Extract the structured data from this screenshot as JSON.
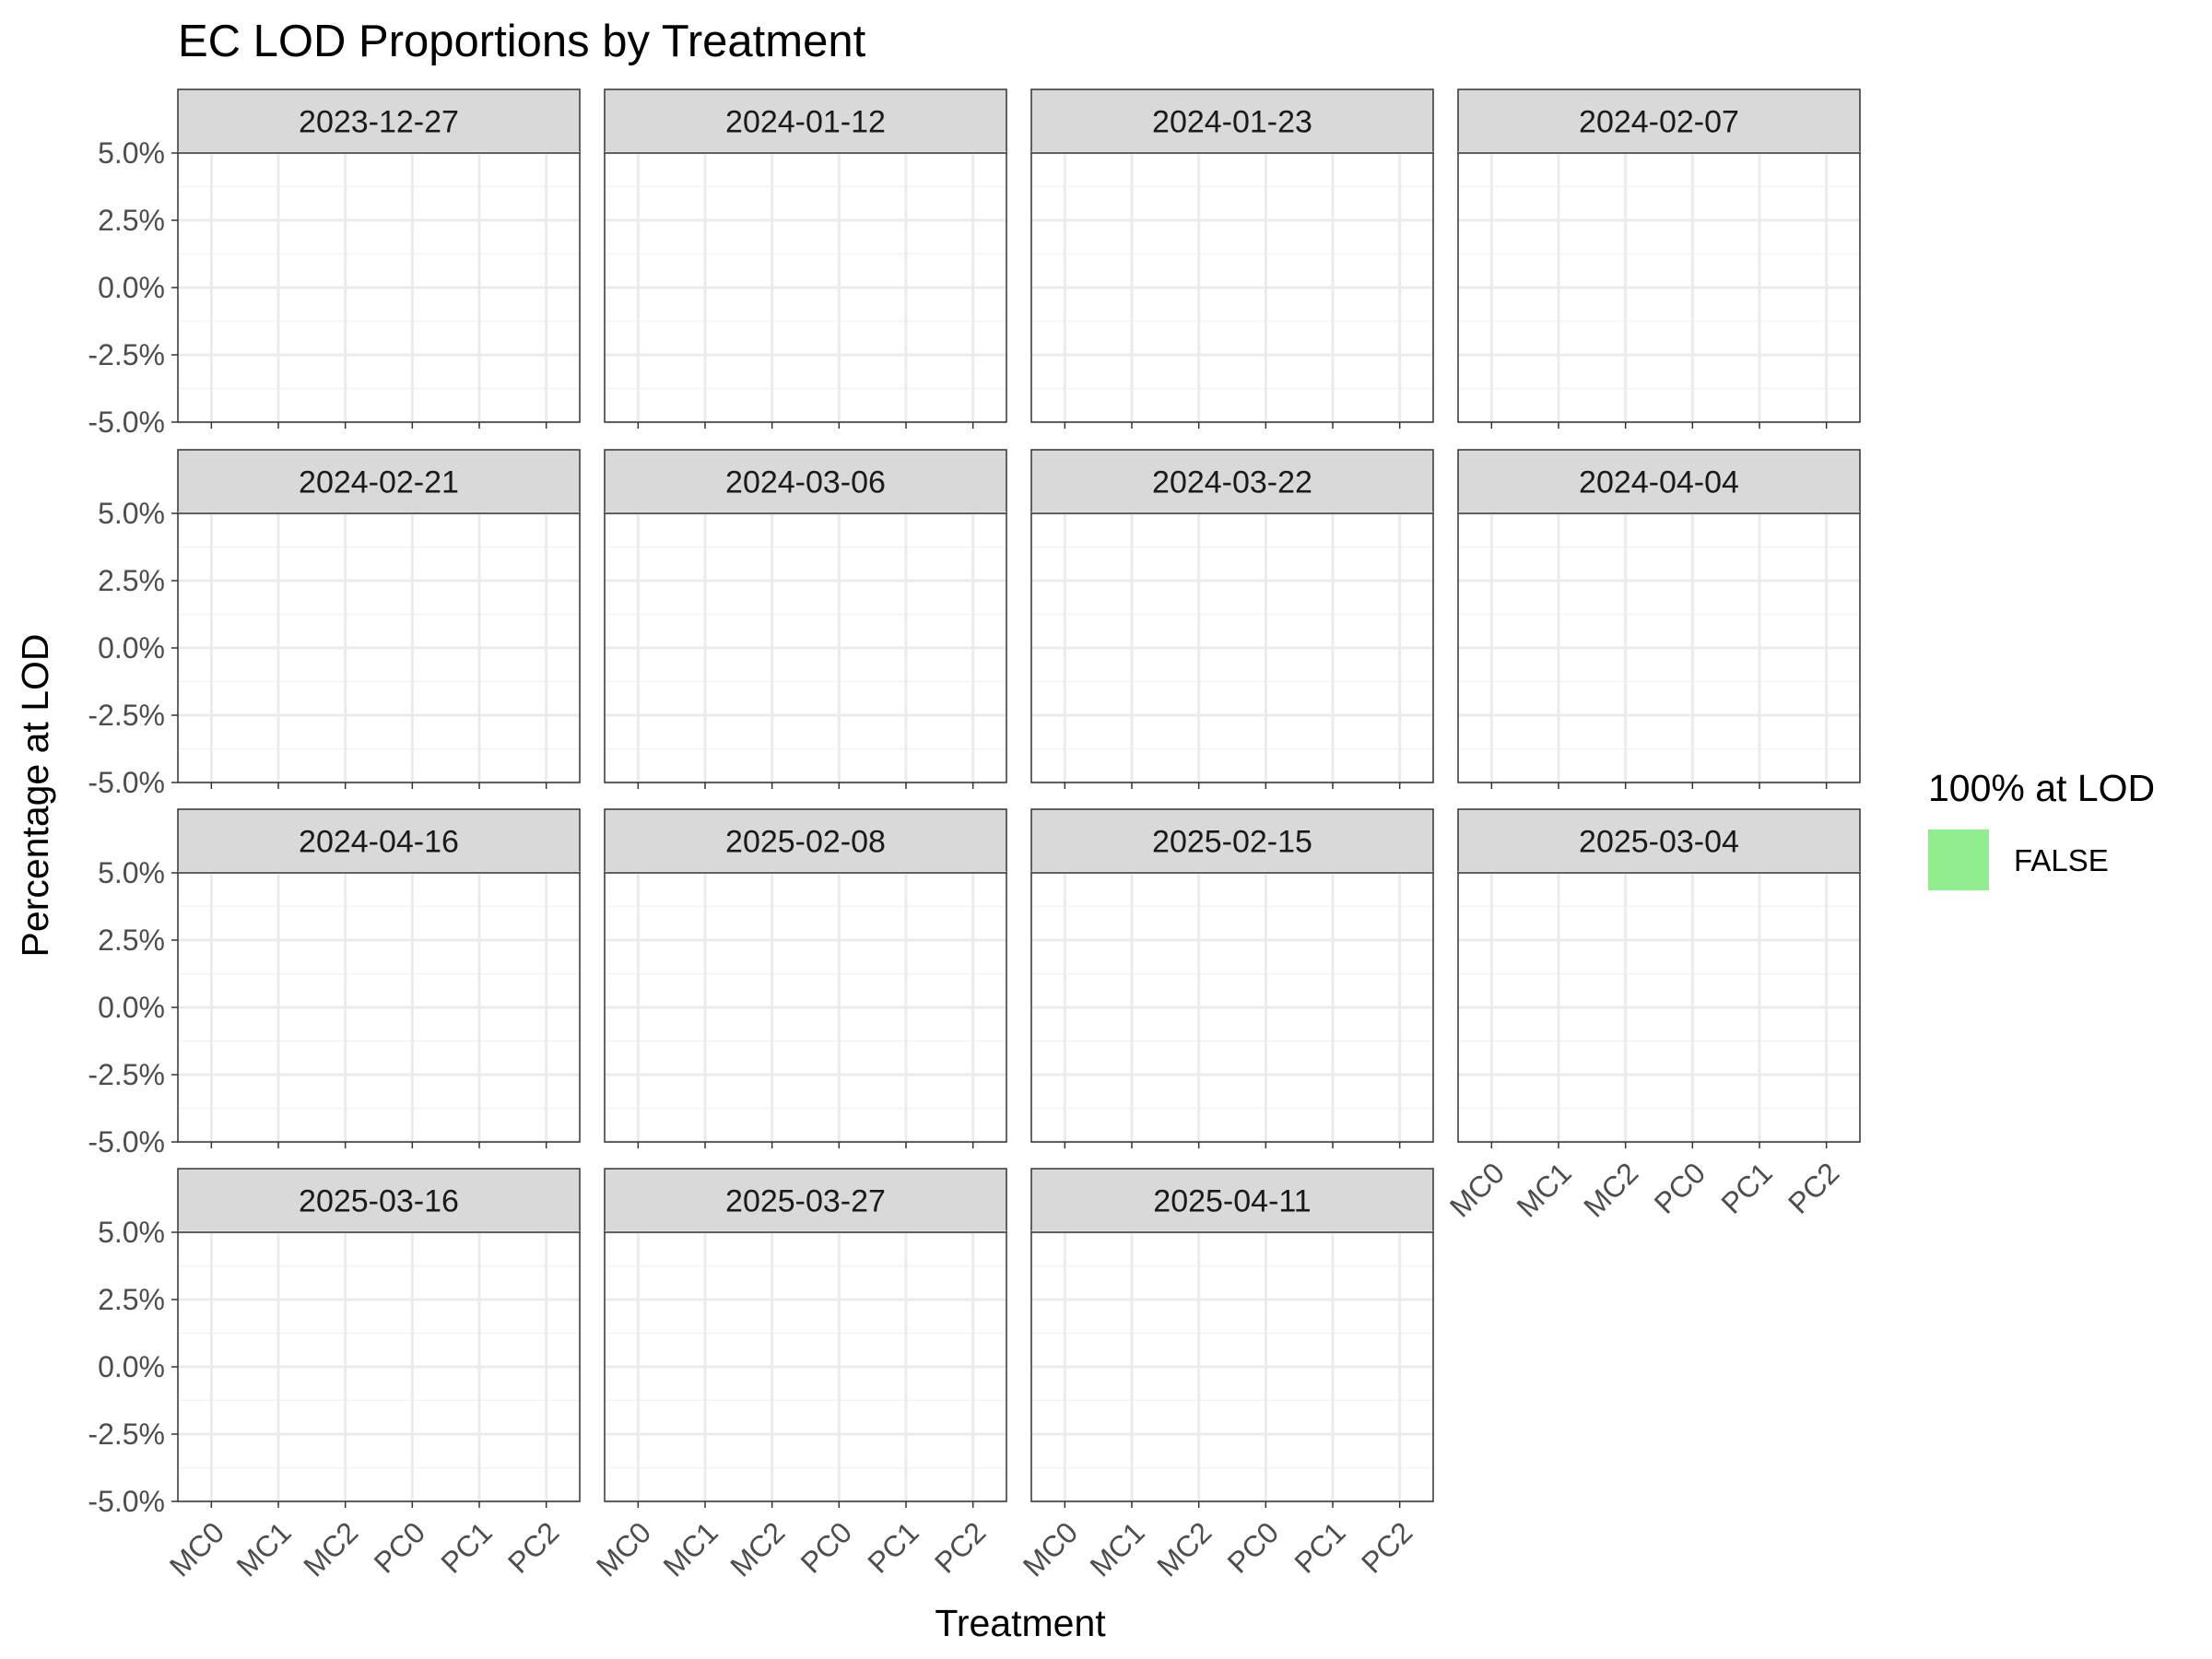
{
  "chart_data": {
    "type": "bar",
    "title": "EC LOD Proportions by Treatment",
    "xlabel": "Treatment",
    "ylabel": "Percentage at LOD",
    "categories": [
      "MC0",
      "MC1",
      "MC2",
      "PC0",
      "PC1",
      "PC2"
    ],
    "y_ticks": [
      "5.0%",
      "2.5%",
      "0.0%",
      "-2.5%",
      "-5.0%"
    ],
    "y_tick_values": [
      0.05,
      0.025,
      0.0,
      -0.025,
      -0.05
    ],
    "ylim": [
      -0.05,
      0.05
    ],
    "grid": true,
    "facets": [
      {
        "label": "2023-12-27",
        "values": []
      },
      {
        "label": "2024-01-12",
        "values": []
      },
      {
        "label": "2024-01-23",
        "values": []
      },
      {
        "label": "2024-02-07",
        "values": []
      },
      {
        "label": "2024-02-21",
        "values": []
      },
      {
        "label": "2024-03-06",
        "values": []
      },
      {
        "label": "2024-03-22",
        "values": []
      },
      {
        "label": "2024-04-04",
        "values": []
      },
      {
        "label": "2024-04-16",
        "values": []
      },
      {
        "label": "2025-02-08",
        "values": []
      },
      {
        "label": "2025-02-15",
        "values": []
      },
      {
        "label": "2025-03-04",
        "values": []
      },
      {
        "label": "2025-03-16",
        "values": []
      },
      {
        "label": "2025-03-27",
        "values": []
      },
      {
        "label": "2025-04-11",
        "values": []
      }
    ],
    "legend": {
      "title": "100% at LOD",
      "placement": "right",
      "entries": [
        {
          "label": "FALSE",
          "color": "#90EE90"
        }
      ]
    }
  }
}
